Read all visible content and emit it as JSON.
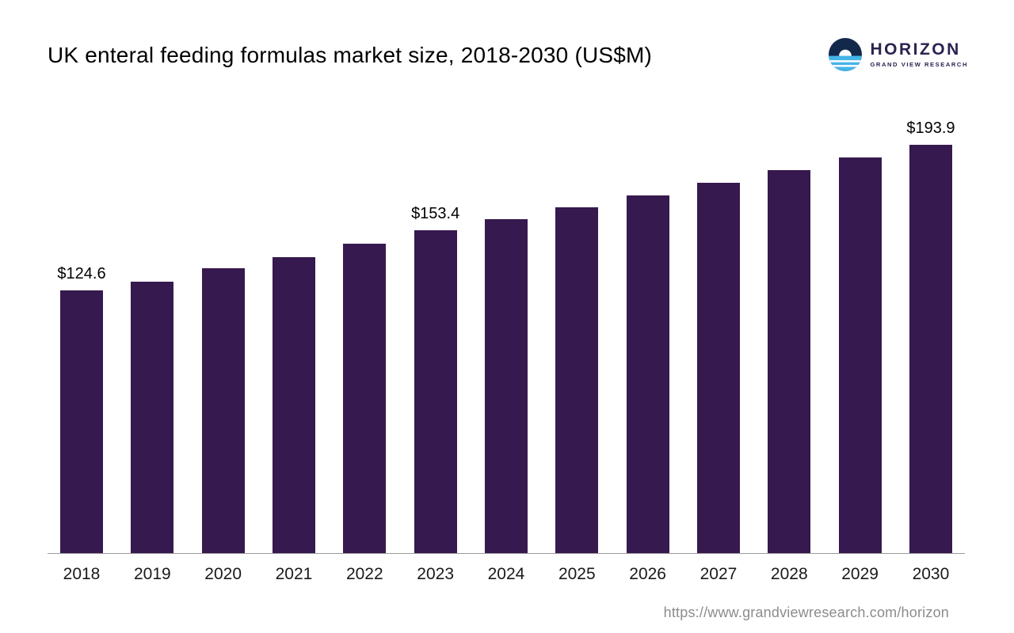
{
  "header": {
    "title": "UK enteral feeding formulas market size, 2018-2030 (US$M)",
    "logo": {
      "name": "HORIZON",
      "subtitle": "GRAND VIEW RESEARCH"
    }
  },
  "footer": {
    "url": "https://www.grandviewresearch.com/horizon"
  },
  "chart_data": {
    "type": "bar",
    "title": "UK enteral feeding formulas market size, 2018-2030 (US$M)",
    "categories": [
      "2018",
      "2019",
      "2020",
      "2021",
      "2022",
      "2023",
      "2024",
      "2025",
      "2026",
      "2027",
      "2028",
      "2029",
      "2030"
    ],
    "values": [
      124.6,
      128.8,
      135.2,
      140.6,
      146.9,
      153.4,
      158.6,
      164.2,
      170.0,
      175.8,
      181.9,
      188.0,
      193.9
    ],
    "labels": [
      "$124.6",
      "",
      "",
      "",
      "",
      "$153.4",
      "",
      "",
      "",
      "",
      "",
      "",
      "$193.9"
    ],
    "bar_color": "#36194E",
    "ylim": [
      0,
      200
    ],
    "xlabel": "",
    "ylabel": "",
    "grid": false,
    "legend": "none"
  }
}
